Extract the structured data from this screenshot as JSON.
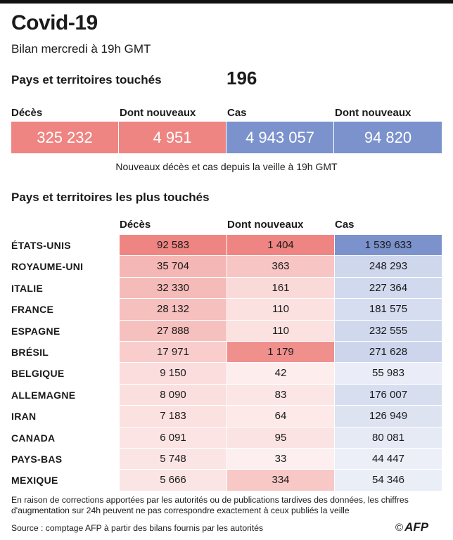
{
  "title": "Covid-19",
  "subtitle": "Bilan mercredi à 19h GMT",
  "countries_touched": {
    "label": "Pays et territoires touchés",
    "value": "196"
  },
  "stats": [
    {
      "label": "Décès",
      "value": "325 232",
      "color": "#ee8582"
    },
    {
      "label": "Dont nouveaux",
      "value": "4 951",
      "color": "#ee8582"
    },
    {
      "label": "Cas",
      "value": "4 943 057",
      "color": "#7b92cd"
    },
    {
      "label": "Dont nouveaux",
      "value": "94 820",
      "color": "#7b92cd"
    }
  ],
  "stats_note": "Nouveaux décès et cas depuis la veille à 19h GMT",
  "table": {
    "title": "Pays et territoires les plus touchés",
    "headers": [
      "Décès",
      "Dont nouveaux",
      "Cas"
    ],
    "rows": [
      {
        "country": "ÉTATS-UNIS",
        "deaths": "92 583",
        "new_deaths": "1 404",
        "cases": "1 539 633",
        "deaths_num": 92583,
        "new_num": 1404,
        "cases_num": 1539633
      },
      {
        "country": "ROYAUME-UNI",
        "deaths": "35 704",
        "new_deaths": "363",
        "cases": "248 293",
        "deaths_num": 35704,
        "new_num": 363,
        "cases_num": 248293
      },
      {
        "country": "ITALIE",
        "deaths": "32 330",
        "new_deaths": "161",
        "cases": "227 364",
        "deaths_num": 32330,
        "new_num": 161,
        "cases_num": 227364
      },
      {
        "country": "FRANCE",
        "deaths": "28 132",
        "new_deaths": "110",
        "cases": "181 575",
        "deaths_num": 28132,
        "new_num": 110,
        "cases_num": 181575
      },
      {
        "country": "ESPAGNE",
        "deaths": "27 888",
        "new_deaths": "110",
        "cases": "232 555",
        "deaths_num": 27888,
        "new_num": 110,
        "cases_num": 232555
      },
      {
        "country": "BRÉSIL",
        "deaths": "17 971",
        "new_deaths": "1 179",
        "cases": "271 628",
        "deaths_num": 17971,
        "new_num": 1179,
        "cases_num": 271628
      },
      {
        "country": "BELGIQUE",
        "deaths": "9 150",
        "new_deaths": "42",
        "cases": "55 983",
        "deaths_num": 9150,
        "new_num": 42,
        "cases_num": 55983
      },
      {
        "country": "ALLEMAGNE",
        "deaths": "8 090",
        "new_deaths": "83",
        "cases": "176 007",
        "deaths_num": 8090,
        "new_num": 83,
        "cases_num": 176007
      },
      {
        "country": "IRAN",
        "deaths": "7 183",
        "new_deaths": "64",
        "cases": "126 949",
        "deaths_num": 7183,
        "new_num": 64,
        "cases_num": 126949
      },
      {
        "country": "CANADA",
        "deaths": "6 091",
        "new_deaths": "95",
        "cases": "80 081",
        "deaths_num": 6091,
        "new_num": 95,
        "cases_num": 80081
      },
      {
        "country": "PAYS-BAS",
        "deaths": "5 748",
        "new_deaths": "33",
        "cases": "44 447",
        "deaths_num": 5748,
        "new_num": 33,
        "cases_num": 44447
      },
      {
        "country": "MEXIQUE",
        "deaths": "5 666",
        "new_deaths": "334",
        "cases": "54 346",
        "deaths_num": 5666,
        "new_num": 334,
        "cases_num": 54346
      }
    ]
  },
  "footnote": "En raison de corrections apportées par les autorités ou de publications tardives des données, les chiffres d'augmentation sur 24h peuvent ne pas correspondre exactement à ceux publiés la veille",
  "source": "Source : comptage AFP à partir des bilans fournis par les autorités",
  "copyright": {
    "symbol": "©",
    "brand": "AFP"
  },
  "colors": {
    "red": "#ee8582",
    "blue": "#7b92cd"
  }
}
